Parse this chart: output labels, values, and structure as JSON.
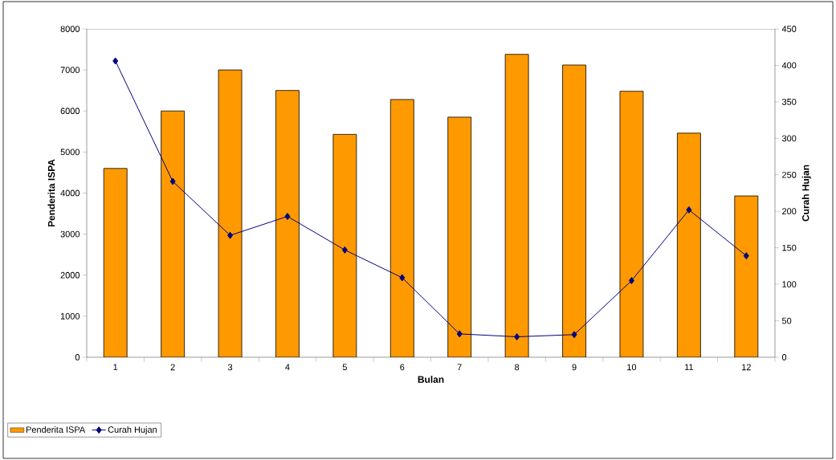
{
  "chart_data": {
    "type": "bar",
    "xlabel": "Bulan",
    "ylabel": "Penderita ISPA",
    "y2label": "Curah Hujan",
    "categories": [
      "1",
      "2",
      "3",
      "4",
      "5",
      "6",
      "7",
      "8",
      "9",
      "10",
      "11",
      "12"
    ],
    "series": [
      {
        "name": "Penderita ISPA",
        "color": "#ff9900",
        "values": [
          4600,
          6000,
          7000,
          6500,
          5430,
          6280,
          5850,
          7380,
          7120,
          6480,
          5460,
          3930
        ]
      },
      {
        "name": "Curah Hujan",
        "type": "line",
        "axis": "y2",
        "color": "#000080",
        "marker": "diamond",
        "values": [
          406,
          241,
          167,
          193,
          147,
          109,
          32,
          28,
          31,
          105,
          202,
          139
        ]
      }
    ],
    "ylim": [
      0,
      8000
    ],
    "yticks": [
      0,
      1000,
      2000,
      3000,
      4000,
      5000,
      6000,
      7000,
      8000
    ],
    "y2lim": [
      0,
      450
    ],
    "y2ticks": [
      0,
      50,
      100,
      150,
      200,
      250,
      300,
      350,
      400,
      450
    ],
    "grid": false,
    "legend": "bottom left"
  }
}
